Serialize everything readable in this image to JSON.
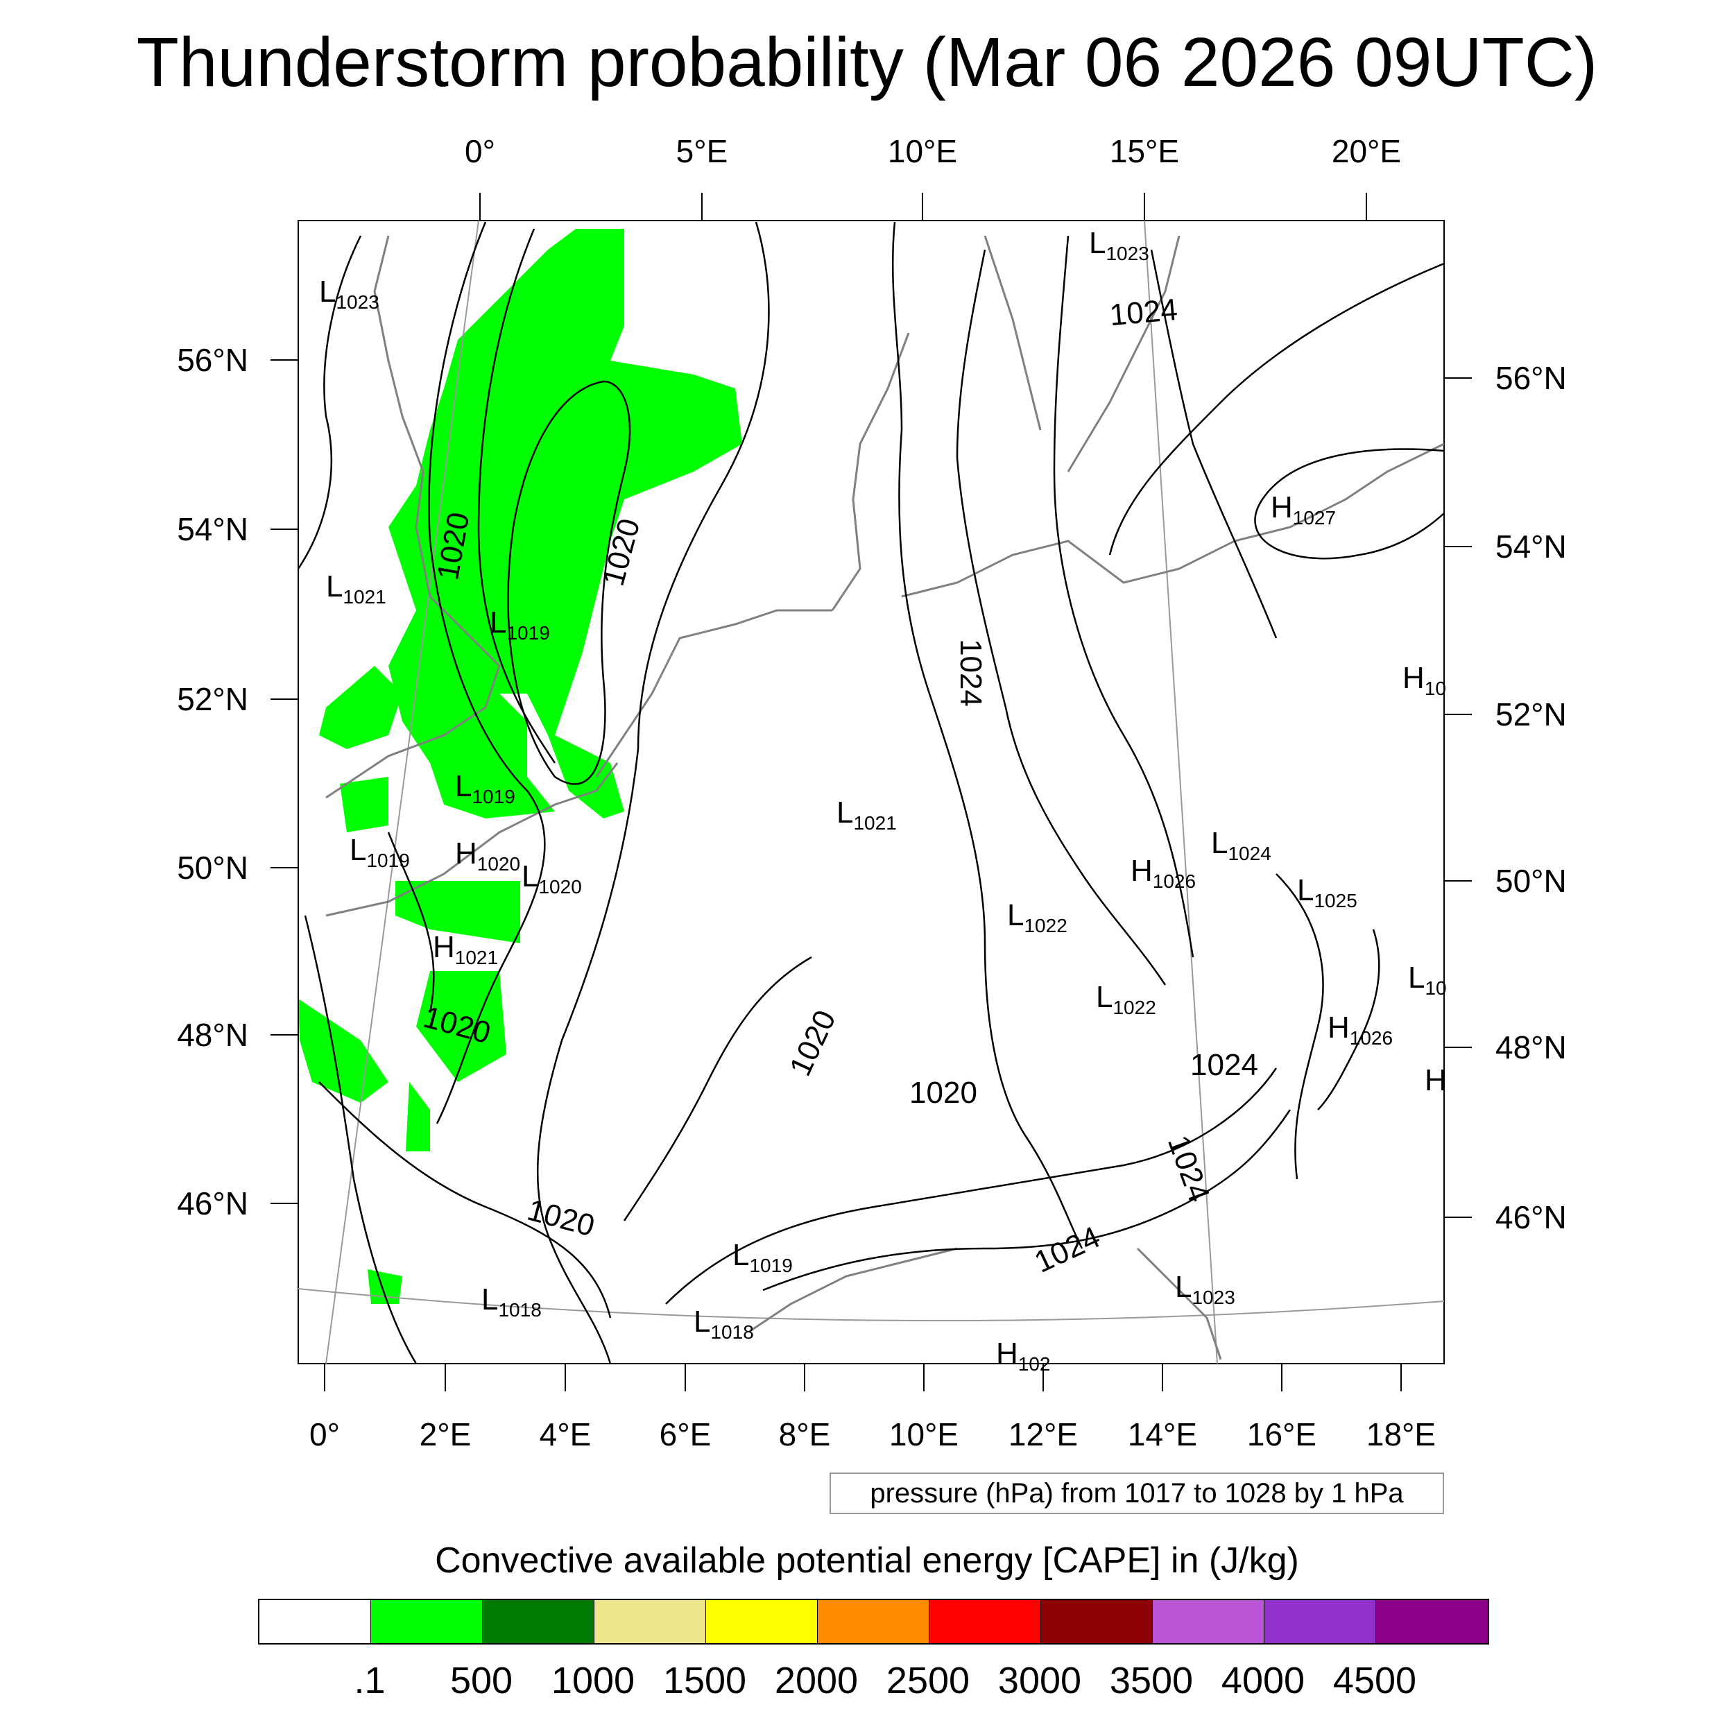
{
  "title": "Thunderstorm probability (Mar 06 2026 09UTC)",
  "top_lon_ticks": [
    "0°",
    "5°E",
    "10°E",
    "15°E",
    "20°E"
  ],
  "bottom_lon_ticks": [
    "0°",
    "2°E",
    "4°E",
    "6°E",
    "8°E",
    "10°E",
    "12°E",
    "14°E",
    "16°E",
    "18°E"
  ],
  "left_lat_ticks": [
    "56°N",
    "54°N",
    "52°N",
    "50°N",
    "48°N",
    "46°N"
  ],
  "right_lat_ticks": [
    "56°N",
    "54°N",
    "52°N",
    "50°N",
    "48°N",
    "46°N"
  ],
  "isobar_labels": [
    "1020",
    "1020",
    "1020",
    "1020",
    "1020",
    "1020",
    "1024",
    "1024",
    "1024",
    "1024",
    "1024"
  ],
  "pressure_centers": [
    {
      "type": "L",
      "value": "1023"
    },
    {
      "type": "L",
      "value": "1023"
    },
    {
      "type": "L",
      "value": "1021"
    },
    {
      "type": "L",
      "value": "1019"
    },
    {
      "type": "L",
      "value": "1019"
    },
    {
      "type": "L",
      "value": "1019"
    },
    {
      "type": "H",
      "value": "1020"
    },
    {
      "type": "L",
      "value": "1020"
    },
    {
      "type": "H",
      "value": "1021"
    },
    {
      "type": "L",
      "value": "1018"
    },
    {
      "type": "L",
      "value": "1018"
    },
    {
      "type": "L",
      "value": "1019"
    },
    {
      "type": "L",
      "value": "1021"
    },
    {
      "type": "L",
      "value": "1022"
    },
    {
      "type": "L",
      "value": "1022"
    },
    {
      "type": "H",
      "value": "1026"
    },
    {
      "type": "L",
      "value": "1024"
    },
    {
      "type": "L",
      "value": "1025"
    },
    {
      "type": "H",
      "value": "1026"
    },
    {
      "type": "H",
      "value": "1027"
    },
    {
      "type": "L",
      "value": "1023"
    },
    {
      "type": "H",
      "value": "10"
    },
    {
      "type": "L",
      "value": "10"
    },
    {
      "type": "H",
      "value": "102"
    },
    {
      "type": "H",
      "value": ""
    }
  ],
  "pressure_note": "pressure (hPa) from 1017 to 1028 by 1 hPa",
  "cape_title": "Convective available potential energy [CAPE] in (J/kg)",
  "colorbar_colors": [
    "#ffffff",
    "#00ff00",
    "#007a00",
    "#efe68c",
    "#ffff00",
    "#ff8c00",
    "#ff0000",
    "#8b0000",
    "#b955d6",
    "#9430cc",
    "#8b0089"
  ],
  "colorbar_labels": [
    ".1",
    "500",
    "1000",
    "1500",
    "2000",
    "2500",
    "3000",
    "3500",
    "4000",
    "4500"
  ],
  "cape_fill_color": "#00ff00"
}
